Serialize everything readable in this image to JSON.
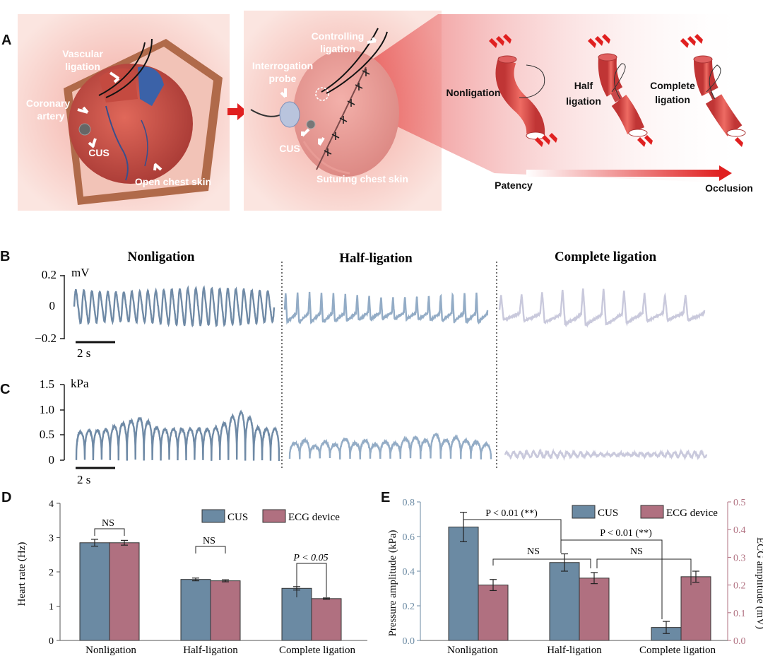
{
  "panels": {
    "a": "A",
    "b": "B",
    "c": "C",
    "d": "D",
    "e": "E"
  },
  "panel_a": {
    "scene1": {
      "vascular_ligation": [
        "Vascular",
        "ligation"
      ],
      "coronary_artery": [
        "Coronary",
        "artery"
      ],
      "cus": "CUS",
      "open_chest_skin": "Open chest skin"
    },
    "scene2": {
      "controlling_ligation": [
        "Controlling",
        "ligation"
      ],
      "interrogation_probe": [
        "Interrogation",
        "probe"
      ],
      "cus": "CUS",
      "suturing_chest_skin": "Suturing chest skin"
    },
    "vessels": {
      "nonligation": "Nonligation",
      "half_ligation": [
        "Half",
        "ligation"
      ],
      "complete_ligation": [
        "Complete",
        "ligation"
      ]
    },
    "gradient": {
      "start": "Patency",
      "end": "Occlusion"
    }
  },
  "trace_headers": [
    "Nonligation",
    "Half-ligation",
    "Complete ligation"
  ],
  "panel_b": {
    "unit": "mV",
    "ticks": [
      "0.2",
      "0",
      "−0.2"
    ],
    "scalebar": "2 s"
  },
  "panel_c": {
    "unit": "kPa",
    "ticks": [
      "1.5",
      "1.0",
      "0.5",
      "0"
    ],
    "scalebar": "2 s"
  },
  "colors": {
    "cus": "#6b8aa3",
    "ecg": "#b07080",
    "trace1": "#6f8aa6",
    "trace2": "#93acc6",
    "trace3": "#c9c9dc"
  },
  "chart_data": [
    {
      "type": "bar",
      "panel": "D",
      "ylabel": "Heart rate (Hz)",
      "ylim": [
        0,
        4
      ],
      "yticks": [
        "0",
        "1",
        "2",
        "3",
        "4"
      ],
      "categories": [
        "Nonligation",
        "Half-ligation",
        "Complete ligation"
      ],
      "series": [
        {
          "name": "CUS",
          "values": [
            2.85,
            1.78,
            1.52
          ],
          "errors": [
            0.1,
            0.04,
            0.05
          ]
        },
        {
          "name": "ECG device",
          "values": [
            2.85,
            1.74,
            1.22
          ],
          "errors": [
            0.07,
            0.03,
            0.02
          ]
        }
      ],
      "annotations": [
        "NS",
        "NS",
        "P < 0.05"
      ],
      "legend": "top-right"
    },
    {
      "type": "bar",
      "panel": "E",
      "ylabel": "Pressure amplitude (kPa)",
      "y2label": "ECG amplitude (mV)",
      "ylim": [
        0,
        0.8
      ],
      "y2lim": [
        0,
        0.5
      ],
      "yticks": [
        "0.0",
        "0.2",
        "0.4",
        "0.6",
        "0.8"
      ],
      "y2ticks": [
        "0.0",
        "0.1",
        "0.2",
        "0.3",
        "0.4",
        "0.5"
      ],
      "categories": [
        "Nonligation",
        "Half-ligation",
        "Complete ligation"
      ],
      "series": [
        {
          "name": "CUS",
          "axis": "left",
          "values": [
            0.655,
            0.45,
            0.075
          ],
          "errors": [
            0.085,
            0.05,
            0.035
          ]
        },
        {
          "name": "ECG device",
          "axis": "right",
          "values": [
            0.2,
            0.225,
            0.23
          ],
          "errors": [
            0.02,
            0.02,
            0.02
          ]
        }
      ],
      "annotations": [
        "P < 0.01 (**)",
        "NS",
        "P < 0.01 (**)",
        "NS"
      ],
      "legend": "top-right"
    }
  ]
}
